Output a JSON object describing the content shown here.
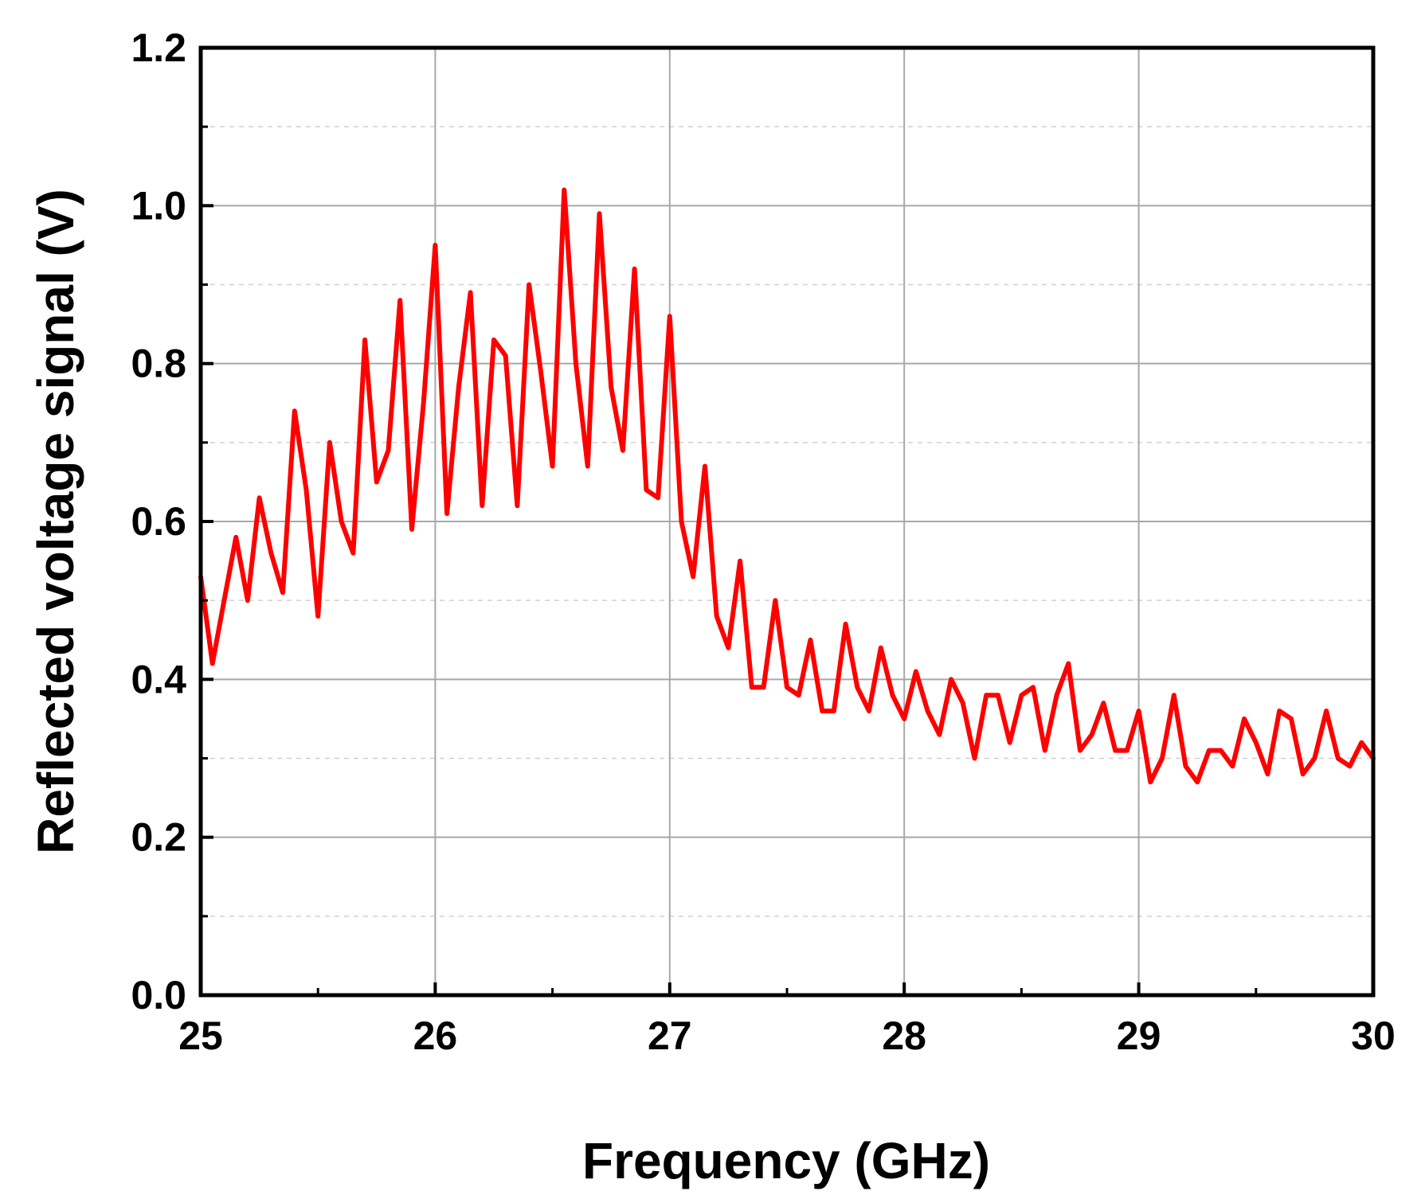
{
  "chart_data": {
    "type": "line",
    "title": "",
    "xlabel": "Frequency (GHz)",
    "ylabel": "Reflected voltage signal (V)",
    "xlim": [
      25,
      30
    ],
    "ylim": [
      0.0,
      1.2
    ],
    "x_ticks": [
      25,
      26,
      27,
      28,
      29,
      30
    ],
    "x_tick_labels": [
      "25",
      "26",
      "27",
      "28",
      "29",
      "30"
    ],
    "y_ticks": [
      0.0,
      0.2,
      0.4,
      0.6,
      0.8,
      1.0,
      1.2
    ],
    "y_tick_labels": [
      "0.0",
      "0.2",
      "0.4",
      "0.6",
      "0.8",
      "1.0",
      "1.2"
    ],
    "grid": "major grid solid, minor grid dashed",
    "legend": "none",
    "series": [
      {
        "color": "#ff0000",
        "x": [
          25.0,
          25.05,
          25.1,
          25.15,
          25.2,
          25.25,
          25.3,
          25.35,
          25.4,
          25.45,
          25.5,
          25.55,
          25.6,
          25.65,
          25.7,
          25.75,
          25.8,
          25.85,
          25.9,
          25.95,
          26.0,
          26.05,
          26.1,
          26.15,
          26.2,
          26.25,
          26.3,
          26.35,
          26.4,
          26.45,
          26.5,
          26.55,
          26.6,
          26.65,
          26.7,
          26.75,
          26.8,
          26.85,
          26.9,
          26.95,
          27.0,
          27.05,
          27.1,
          27.15,
          27.2,
          27.25,
          27.3,
          27.35,
          27.4,
          27.45,
          27.5,
          27.55,
          27.6,
          27.65,
          27.7,
          27.75,
          27.8,
          27.85,
          27.9,
          27.95,
          28.0,
          28.05,
          28.1,
          28.15,
          28.2,
          28.25,
          28.3,
          28.35,
          28.4,
          28.45,
          28.5,
          28.55,
          28.6,
          28.65,
          28.7,
          28.75,
          28.8,
          28.85,
          28.9,
          28.95,
          29.0,
          29.05,
          29.1,
          29.15,
          29.2,
          29.25,
          29.3,
          29.35,
          29.4,
          29.45,
          29.5,
          29.55,
          29.6,
          29.65,
          29.7,
          29.75,
          29.8,
          29.85,
          29.9,
          29.95,
          30.0
        ],
        "y": [
          0.53,
          0.42,
          0.5,
          0.58,
          0.5,
          0.63,
          0.56,
          0.51,
          0.74,
          0.64,
          0.48,
          0.7,
          0.6,
          0.56,
          0.83,
          0.65,
          0.69,
          0.88,
          0.59,
          0.75,
          0.95,
          0.61,
          0.77,
          0.89,
          0.62,
          0.83,
          0.81,
          0.62,
          0.9,
          0.79,
          0.67,
          1.02,
          0.8,
          0.67,
          0.99,
          0.77,
          0.69,
          0.92,
          0.64,
          0.63,
          0.86,
          0.6,
          0.53,
          0.67,
          0.48,
          0.44,
          0.55,
          0.39,
          0.39,
          0.5,
          0.39,
          0.38,
          0.45,
          0.36,
          0.36,
          0.47,
          0.39,
          0.36,
          0.44,
          0.38,
          0.35,
          0.41,
          0.36,
          0.33,
          0.4,
          0.37,
          0.3,
          0.38,
          0.38,
          0.32,
          0.38,
          0.39,
          0.31,
          0.38,
          0.42,
          0.31,
          0.33,
          0.37,
          0.31,
          0.31,
          0.36,
          0.27,
          0.3,
          0.38,
          0.29,
          0.27,
          0.31,
          0.31,
          0.29,
          0.35,
          0.32,
          0.28,
          0.36,
          0.35,
          0.28,
          0.3,
          0.36,
          0.3,
          0.29,
          0.32,
          0.3
        ]
      }
    ]
  }
}
